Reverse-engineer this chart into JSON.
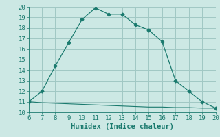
{
  "xlabel": "Humidex (Indice chaleur)",
  "line1_x": [
    6,
    7,
    8,
    9,
    10,
    11,
    12,
    13,
    14,
    15,
    16,
    17,
    18,
    19,
    20
  ],
  "line1_y": [
    11.0,
    12.0,
    14.4,
    16.6,
    18.8,
    19.9,
    19.3,
    19.3,
    18.3,
    17.8,
    16.7,
    13.0,
    12.0,
    11.0,
    10.4
  ],
  "line2_x": [
    6,
    7,
    8,
    9,
    10,
    11,
    12,
    13,
    14,
    15,
    16,
    17,
    18,
    19,
    20
  ],
  "line2_y": [
    11.0,
    10.9,
    10.85,
    10.8,
    10.75,
    10.7,
    10.65,
    10.6,
    10.55,
    10.5,
    10.5,
    10.45,
    10.45,
    10.4,
    10.4
  ],
  "line_color": "#1a7a6e",
  "bg_color": "#cce8e4",
  "grid_color": "#a0c8c4",
  "xlim": [
    6,
    20
  ],
  "ylim": [
    10,
    20
  ],
  "xticks": [
    6,
    7,
    8,
    9,
    10,
    11,
    12,
    13,
    14,
    15,
    16,
    17,
    18,
    19,
    20
  ],
  "yticks": [
    10,
    11,
    12,
    13,
    14,
    15,
    16,
    17,
    18,
    19,
    20
  ],
  "marker": "D",
  "markersize": 2.5,
  "tick_fontsize": 6.5,
  "xlabel_fontsize": 7.5
}
